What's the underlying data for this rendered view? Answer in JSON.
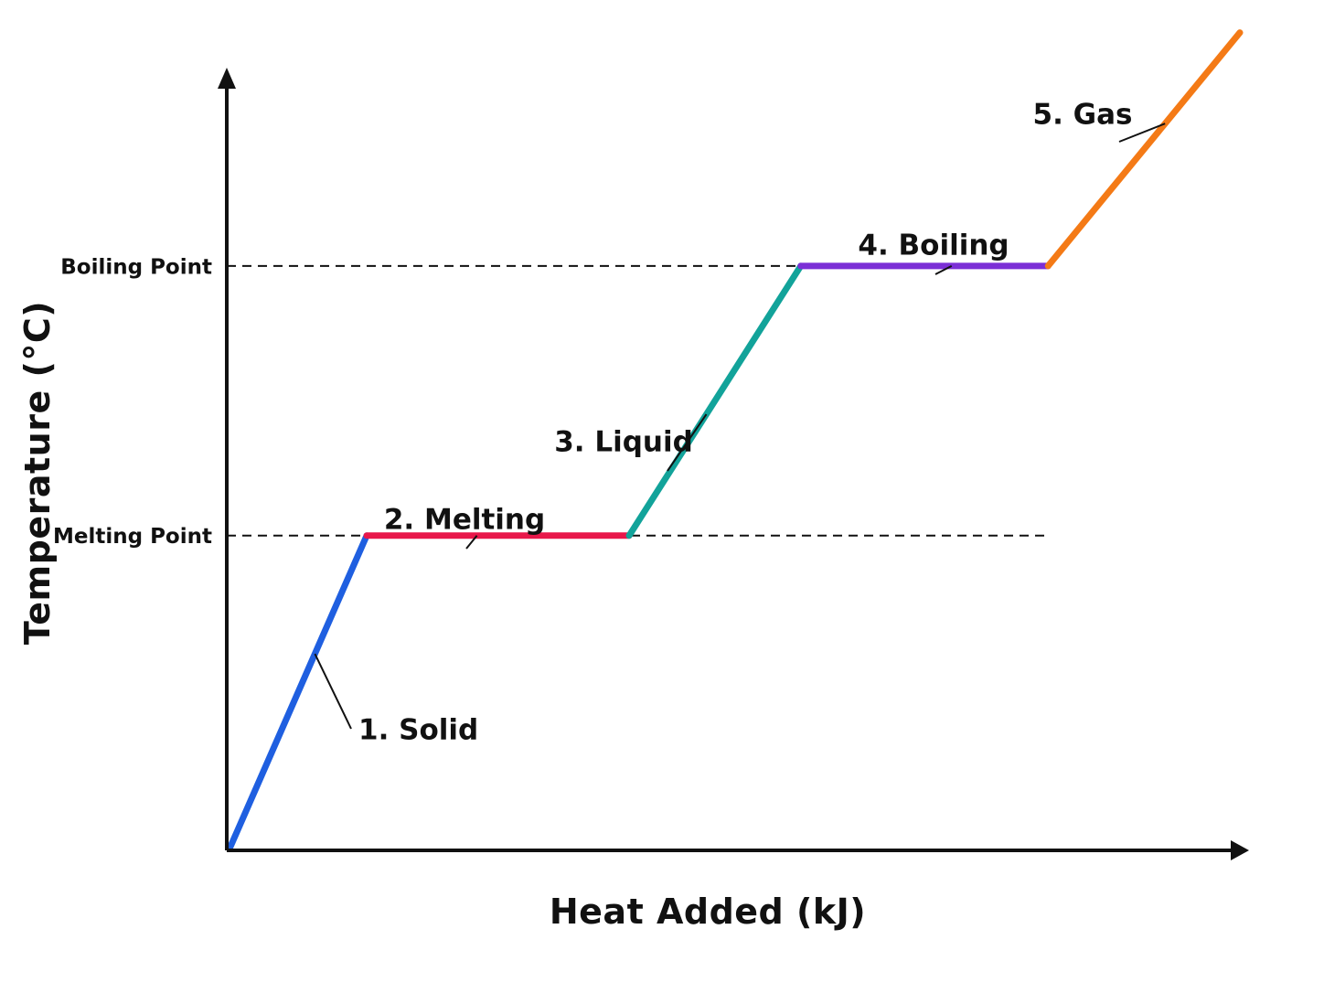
{
  "chart_data": {
    "type": "line",
    "title": "",
    "xlabel": "Heat Added (kJ)",
    "ylabel": "Temperature  (°C)",
    "x_ticks": [],
    "y_reference_lines": [
      {
        "label": "Boiling Point",
        "y": 5.6,
        "style": "dashed"
      },
      {
        "label": "Melting Point",
        "y": 3.0,
        "style": "dashed"
      }
    ],
    "xlim": [
      0,
      10
    ],
    "ylim": [
      0,
      7.6
    ],
    "grid": false,
    "legend": "none",
    "series": [
      {
        "label": "1. Solid",
        "color": "#1f5fe0",
        "points": [
          [
            0.0,
            0.0
          ],
          [
            1.35,
            3.0
          ]
        ]
      },
      {
        "label": "2. Melting",
        "color": "#e8174a",
        "points": [
          [
            1.35,
            3.0
          ],
          [
            3.95,
            3.0
          ]
        ]
      },
      {
        "label": "3. Liquid",
        "color": "#12a39a",
        "points": [
          [
            3.95,
            3.0
          ],
          [
            5.65,
            5.6
          ]
        ]
      },
      {
        "label": "4. Boiling",
        "color": "#7b2fd6",
        "points": [
          [
            5.65,
            5.6
          ],
          [
            8.1,
            5.6
          ]
        ]
      },
      {
        "label": "5. Gas",
        "color": "#f47a16",
        "points": [
          [
            8.1,
            5.6
          ],
          [
            10.0,
            7.85
          ]
        ]
      }
    ]
  }
}
